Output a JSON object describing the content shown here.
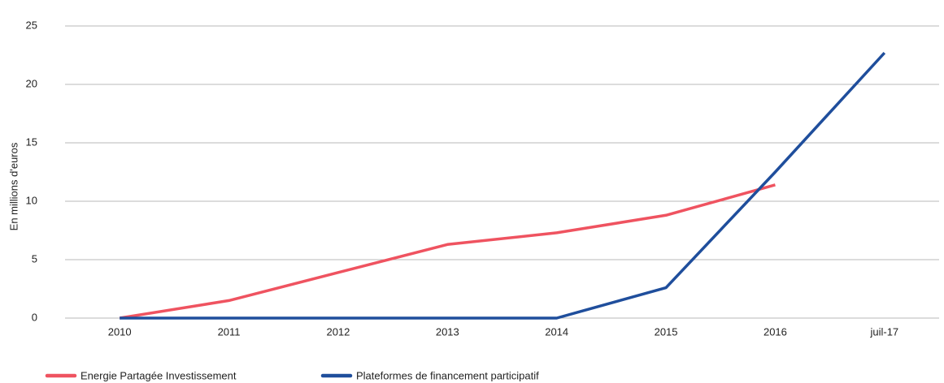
{
  "chart_data": {
    "type": "line",
    "y_label": "En millions d'euros",
    "categories": [
      "2010",
      "2011",
      "2012",
      "2013",
      "2014",
      "2015",
      "2016",
      "juil-17"
    ],
    "series": [
      {
        "name": "Energie Partagée Investissement",
        "color": "#ef5360",
        "values": [
          0,
          1.5,
          3.9,
          6.3,
          7.3,
          8.8,
          11.4,
          null
        ]
      },
      {
        "name": "Plateformes de financement participatif",
        "color": "#1f4e9c",
        "values": [
          0,
          0,
          0,
          0,
          0,
          2.6,
          12.5,
          22.7
        ]
      }
    ],
    "ylim": [
      0,
      25
    ],
    "yticks": [
      0,
      5,
      10,
      15,
      20,
      25
    ],
    "grid": true,
    "legend": "bottom"
  }
}
